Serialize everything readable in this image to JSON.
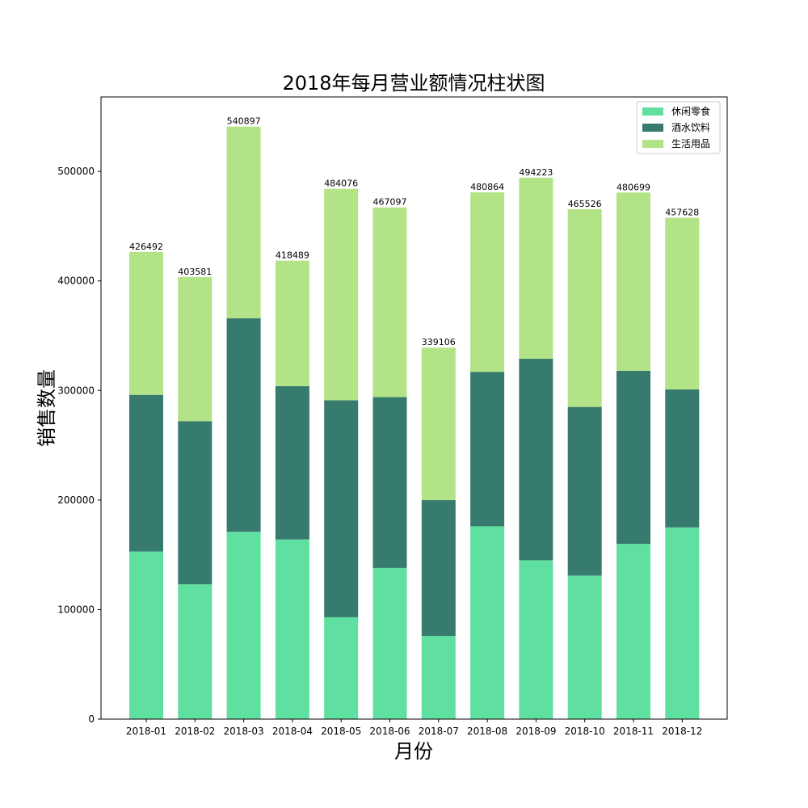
{
  "chart_data": {
    "type": "bar",
    "stacked": true,
    "title": "2018年每月营业额情况柱状图",
    "xlabel": "月份",
    "ylabel": "销售数量",
    "categories": [
      "2018-01",
      "2018-02",
      "2018-03",
      "2018-04",
      "2018-05",
      "2018-06",
      "2018-07",
      "2018-08",
      "2018-09",
      "2018-10",
      "2018-11",
      "2018-12"
    ],
    "series": [
      {
        "name": "休闲零食",
        "color": "#5fe0a0",
        "values": [
          153000,
          123000,
          171000,
          164000,
          93000,
          138000,
          76000,
          176000,
          145000,
          131000,
          160000,
          175000
        ]
      },
      {
        "name": "酒水饮料",
        "color": "#377a6e",
        "values": [
          143000,
          149000,
          195000,
          140000,
          198000,
          156000,
          124000,
          141000,
          184000,
          154000,
          158000,
          126000
        ]
      },
      {
        "name": "生活用品",
        "color": "#b3e387",
        "values": [
          130492,
          131581,
          174897,
          114489,
          193076,
          173097,
          139106,
          163864,
          165223,
          180526,
          162699,
          156628
        ]
      }
    ],
    "totals": [
      426492,
      403581,
      540897,
      418489,
      484076,
      467097,
      339106,
      480864,
      494223,
      465526,
      480699,
      457628
    ],
    "yticks": [
      0,
      100000,
      200000,
      300000,
      400000,
      500000
    ],
    "ylim": [
      0,
      567942
    ],
    "legend_position": "top-right",
    "grid": false
  }
}
